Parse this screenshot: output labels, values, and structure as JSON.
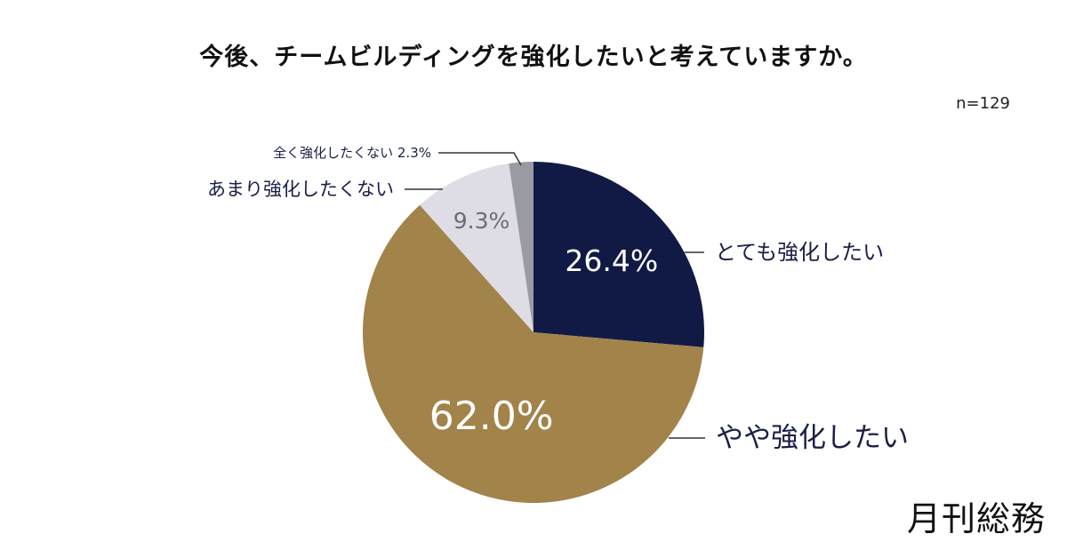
{
  "title": "今後、チームビルディングを強化したいと考えていますか。",
  "sample_size": "n=129",
  "brand": "月刊総務",
  "chart_data": {
    "type": "pie",
    "start_angle_deg": 0,
    "direction": "clockwise",
    "slices": [
      {
        "label": "とても強化したい",
        "value": 26.4,
        "display": "26.4%",
        "color": "#111a44"
      },
      {
        "label": "やや強化したい",
        "value": 62.0,
        "display": "62.0%",
        "color": "#a2834a"
      },
      {
        "label": "あまり強化したくない",
        "value": 9.3,
        "display": "9.3%",
        "color": "#dedde6"
      },
      {
        "label": "全く強化したくない",
        "value": 2.3,
        "display": "2.3%",
        "color": "#9a9aa2"
      }
    ]
  }
}
